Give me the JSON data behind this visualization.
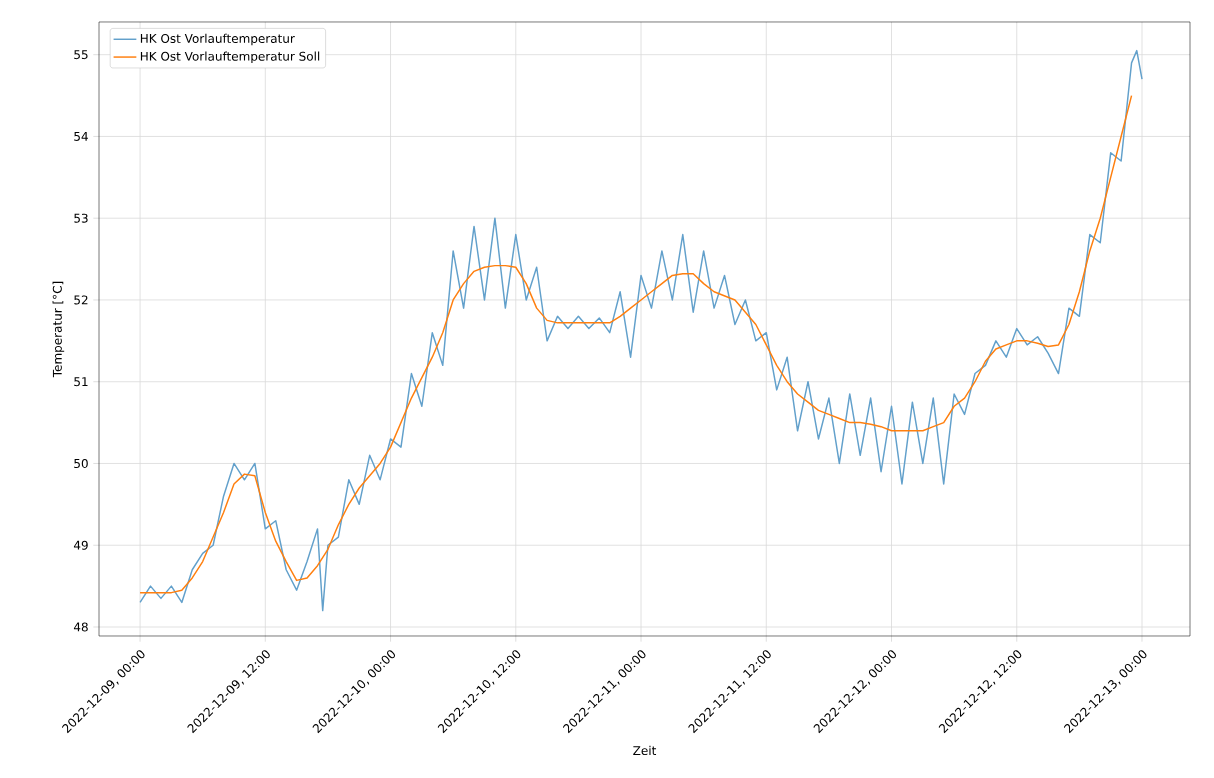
{
  "chart_data": {
    "type": "line",
    "xlabel": "Zeit",
    "ylabel": "Temperatur [°C]",
    "xlim": [
      "2022-12-08T20:04",
      "2022-12-13T04:36"
    ],
    "ylim": [
      47.89,
      55.4
    ],
    "xticks": [
      {
        "value": "2022-12-09T00:00",
        "label": "2022-12-09, 00:00"
      },
      {
        "value": "2022-12-09T12:00",
        "label": "2022-12-09, 12:00"
      },
      {
        "value": "2022-12-10T00:00",
        "label": "2022-12-10, 00:00"
      },
      {
        "value": "2022-12-10T12:00",
        "label": "2022-12-10, 12:00"
      },
      {
        "value": "2022-12-11T00:00",
        "label": "2022-12-11, 00:00"
      },
      {
        "value": "2022-12-11T12:00",
        "label": "2022-12-11, 12:00"
      },
      {
        "value": "2022-12-12T00:00",
        "label": "2022-12-12, 00:00"
      },
      {
        "value": "2022-12-12T12:00",
        "label": "2022-12-12, 12:00"
      },
      {
        "value": "2022-12-13T00:00",
        "label": "2022-12-13, 00:00"
      }
    ],
    "yticks": [
      48,
      49,
      50,
      51,
      52,
      53,
      54,
      55
    ],
    "grid": true,
    "legend": "top left",
    "marker": "none",
    "line_style": "solid",
    "x": [
      "2022-12-09T00:00",
      "2022-12-09T01:00",
      "2022-12-09T02:00",
      "2022-12-09T03:00",
      "2022-12-09T04:00",
      "2022-12-09T05:00",
      "2022-12-09T06:00",
      "2022-12-09T07:00",
      "2022-12-09T08:00",
      "2022-12-09T09:00",
      "2022-12-09T10:00",
      "2022-12-09T11:00",
      "2022-12-09T12:00",
      "2022-12-09T13:00",
      "2022-12-09T14:00",
      "2022-12-09T15:00",
      "2022-12-09T16:00",
      "2022-12-09T17:00",
      "2022-12-09T18:00",
      "2022-12-09T19:00",
      "2022-12-09T20:00",
      "2022-12-09T21:00",
      "2022-12-09T22:00",
      "2022-12-09T23:00",
      "2022-12-10T00:00",
      "2022-12-10T01:00",
      "2022-12-10T02:00",
      "2022-12-10T03:00",
      "2022-12-10T04:00",
      "2022-12-10T05:00",
      "2022-12-10T06:00",
      "2022-12-10T07:00",
      "2022-12-10T08:00",
      "2022-12-10T09:00",
      "2022-12-10T10:00",
      "2022-12-10T11:00",
      "2022-12-10T12:00",
      "2022-12-10T13:00",
      "2022-12-10T14:00",
      "2022-12-10T15:00",
      "2022-12-10T16:00",
      "2022-12-10T17:00",
      "2022-12-10T18:00",
      "2022-12-10T19:00",
      "2022-12-10T20:00",
      "2022-12-10T21:00",
      "2022-12-10T22:00",
      "2022-12-10T23:00",
      "2022-12-11T00:00",
      "2022-12-11T01:00",
      "2022-12-11T02:00",
      "2022-12-11T03:00",
      "2022-12-11T04:00",
      "2022-12-11T05:00",
      "2022-12-11T06:00",
      "2022-12-11T07:00",
      "2022-12-11T08:00",
      "2022-12-11T09:00",
      "2022-12-11T10:00",
      "2022-12-11T11:00",
      "2022-12-11T12:00",
      "2022-12-11T13:00",
      "2022-12-11T14:00",
      "2022-12-11T15:00",
      "2022-12-11T16:00",
      "2022-12-11T17:00",
      "2022-12-11T18:00",
      "2022-12-11T19:00",
      "2022-12-11T20:00",
      "2022-12-11T21:00",
      "2022-12-11T22:00",
      "2022-12-11T23:00",
      "2022-12-12T00:00",
      "2022-12-12T01:00",
      "2022-12-12T02:00",
      "2022-12-12T03:00",
      "2022-12-12T04:00",
      "2022-12-12T05:00",
      "2022-12-12T06:00",
      "2022-12-12T07:00",
      "2022-12-12T08:00",
      "2022-12-12T09:00",
      "2022-12-12T10:00",
      "2022-12-12T11:00",
      "2022-12-12T12:00",
      "2022-12-12T13:00",
      "2022-12-12T14:00",
      "2022-12-12T15:00",
      "2022-12-12T16:00",
      "2022-12-12T17:00",
      "2022-12-12T18:00",
      "2022-12-12T19:00",
      "2022-12-12T20:00",
      "2022-12-12T21:00",
      "2022-12-12T22:00",
      "2022-12-12T23:00"
    ],
    "series": [
      {
        "name": "HK Ost Vorlauftemperatur",
        "color": "#62a0cb",
        "x": [
          "2022-12-09T00:00",
          "2022-12-09T01:00",
          "2022-12-09T02:00",
          "2022-12-09T03:00",
          "2022-12-09T04:00",
          "2022-12-09T05:00",
          "2022-12-09T06:00",
          "2022-12-09T07:00",
          "2022-12-09T08:00",
          "2022-12-09T09:00",
          "2022-12-09T10:00",
          "2022-12-09T11:00",
          "2022-12-09T12:00",
          "2022-12-09T13:00",
          "2022-12-09T14:00",
          "2022-12-09T15:00",
          "2022-12-09T16:00",
          "2022-12-09T17:00",
          "2022-12-09T17:30",
          "2022-12-09T18:00",
          "2022-12-09T19:00",
          "2022-12-09T20:00",
          "2022-12-09T21:00",
          "2022-12-09T22:00",
          "2022-12-09T23:00",
          "2022-12-10T00:00",
          "2022-12-10T01:00",
          "2022-12-10T02:00",
          "2022-12-10T03:00",
          "2022-12-10T04:00",
          "2022-12-10T05:00",
          "2022-12-10T06:00",
          "2022-12-10T07:00",
          "2022-12-10T08:00",
          "2022-12-10T09:00",
          "2022-12-10T10:00",
          "2022-12-10T11:00",
          "2022-12-10T12:00",
          "2022-12-10T13:00",
          "2022-12-10T14:00",
          "2022-12-10T15:00",
          "2022-12-10T16:00",
          "2022-12-10T17:00",
          "2022-12-10T18:00",
          "2022-12-10T19:00",
          "2022-12-10T20:00",
          "2022-12-10T21:00",
          "2022-12-10T22:00",
          "2022-12-10T23:00",
          "2022-12-11T00:00",
          "2022-12-11T01:00",
          "2022-12-11T02:00",
          "2022-12-11T03:00",
          "2022-12-11T04:00",
          "2022-12-11T05:00",
          "2022-12-11T06:00",
          "2022-12-11T07:00",
          "2022-12-11T08:00",
          "2022-12-11T09:00",
          "2022-12-11T10:00",
          "2022-12-11T11:00",
          "2022-12-11T12:00",
          "2022-12-11T13:00",
          "2022-12-11T14:00",
          "2022-12-11T15:00",
          "2022-12-11T16:00",
          "2022-12-11T17:00",
          "2022-12-11T18:00",
          "2022-12-11T19:00",
          "2022-12-11T20:00",
          "2022-12-11T21:00",
          "2022-12-11T22:00",
          "2022-12-11T23:00",
          "2022-12-12T00:00",
          "2022-12-12T01:00",
          "2022-12-12T02:00",
          "2022-12-12T03:00",
          "2022-12-12T04:00",
          "2022-12-12T05:00",
          "2022-12-12T06:00",
          "2022-12-12T07:00",
          "2022-12-12T08:00",
          "2022-12-12T09:00",
          "2022-12-12T10:00",
          "2022-12-12T11:00",
          "2022-12-12T12:00",
          "2022-12-12T13:00",
          "2022-12-12T14:00",
          "2022-12-12T15:00",
          "2022-12-12T16:00",
          "2022-12-12T17:00",
          "2022-12-12T18:00",
          "2022-12-12T19:00",
          "2022-12-12T20:00",
          "2022-12-12T21:00",
          "2022-12-12T22:00",
          "2022-12-12T23:00",
          "2022-12-12T23:30",
          "2022-12-13T00:00"
        ],
        "values": [
          48.3,
          48.5,
          48.35,
          48.5,
          48.3,
          48.7,
          48.9,
          49.0,
          49.6,
          50.0,
          49.8,
          50.0,
          49.2,
          49.3,
          48.7,
          48.45,
          48.8,
          49.2,
          48.2,
          49.0,
          49.1,
          49.8,
          49.5,
          50.1,
          49.8,
          50.3,
          50.2,
          51.1,
          50.7,
          51.6,
          51.2,
          52.6,
          51.9,
          52.9,
          52.0,
          53.0,
          51.9,
          52.8,
          52.0,
          52.4,
          51.5,
          51.8,
          51.65,
          51.8,
          51.65,
          51.78,
          51.6,
          52.1,
          51.3,
          52.3,
          51.9,
          52.6,
          52.0,
          52.8,
          51.85,
          52.6,
          51.9,
          52.3,
          51.7,
          52.0,
          51.5,
          51.6,
          50.9,
          51.3,
          50.4,
          51.0,
          50.3,
          50.8,
          50.0,
          50.85,
          50.1,
          50.8,
          49.9,
          50.7,
          49.75,
          50.75,
          50.0,
          50.8,
          49.75,
          50.85,
          50.6,
          51.1,
          51.2,
          51.5,
          51.3,
          51.65,
          51.45,
          51.55,
          51.35,
          51.1,
          51.9,
          51.8,
          52.8,
          52.7,
          53.8,
          53.7,
          54.9,
          55.05,
          54.7
        ]
      },
      {
        "name": "HK Ost Vorlauftemperatur Soll",
        "color": "#ff7f0e",
        "values": [
          48.42,
          48.42,
          48.42,
          48.42,
          48.45,
          48.6,
          48.8,
          49.1,
          49.4,
          49.75,
          49.87,
          49.85,
          49.4,
          49.05,
          48.8,
          48.57,
          48.6,
          48.75,
          48.95,
          49.25,
          49.5,
          49.7,
          49.85,
          50.0,
          50.2,
          50.5,
          50.8,
          51.05,
          51.3,
          51.6,
          52.0,
          52.2,
          52.35,
          52.4,
          52.42,
          52.42,
          52.4,
          52.2,
          51.9,
          51.75,
          51.72,
          51.72,
          51.72,
          51.72,
          51.72,
          51.72,
          51.8,
          51.9,
          52.0,
          52.1,
          52.2,
          52.3,
          52.32,
          52.32,
          52.2,
          52.1,
          52.05,
          52.0,
          51.85,
          51.7,
          51.45,
          51.2,
          51.0,
          50.85,
          50.75,
          50.65,
          50.6,
          50.55,
          50.5,
          50.5,
          50.48,
          50.45,
          50.4,
          50.4,
          50.4,
          50.4,
          50.45,
          50.5,
          50.7,
          50.8,
          51.0,
          51.25,
          51.4,
          51.45,
          51.5,
          51.5,
          51.47,
          51.43,
          51.45,
          51.7,
          52.1,
          52.6,
          53.0,
          53.5,
          54.0,
          54.5
        ]
      }
    ]
  }
}
